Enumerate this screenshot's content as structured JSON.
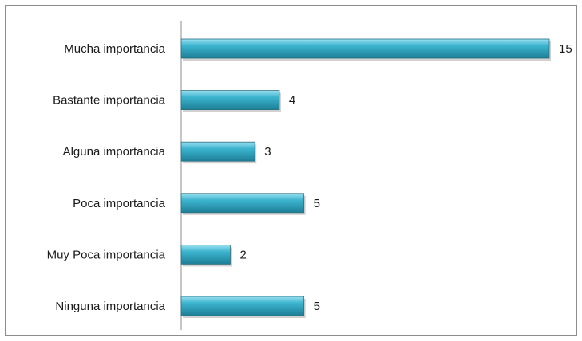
{
  "chart_data": {
    "type": "bar",
    "orientation": "horizontal",
    "categories": [
      "Mucha importancia",
      "Bastante importancia",
      "Alguna importancia",
      "Poca importancia",
      "Muy Poca importancia",
      "Ninguna importancia"
    ],
    "values": [
      15,
      4,
      3,
      5,
      2,
      5
    ],
    "value_labels": [
      "15",
      "4",
      "3",
      "5",
      "2",
      "5"
    ],
    "title": "",
    "xlabel": "",
    "ylabel": "",
    "xlim": [
      0,
      15
    ],
    "grid": false,
    "legend": "none",
    "colors": {
      "bar_fill": "#3cb4cf",
      "bar_highlight": "#9be1f0",
      "bar_shadow": "#1d7f96",
      "bar_border": "#2a6f80",
      "axis": "#8c8c8c"
    }
  }
}
